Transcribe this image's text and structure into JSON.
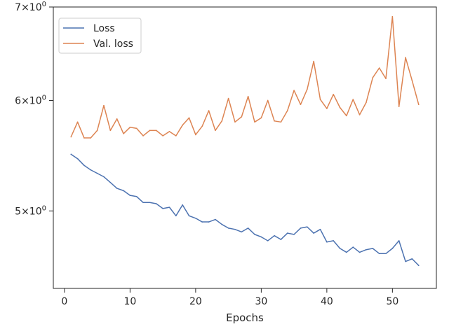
{
  "chart_data": {
    "type": "line",
    "title": "",
    "xlabel": "Epochs",
    "ylabel": "",
    "yscale": "log",
    "grid": false,
    "legend_position": "top-left",
    "xlim": [
      -1.7,
      56.7
    ],
    "ylim": [
      4.4,
      7.0
    ],
    "xticks": [
      {
        "value": 0,
        "label": "0"
      },
      {
        "value": 10,
        "label": "10"
      },
      {
        "value": 20,
        "label": "20"
      },
      {
        "value": 30,
        "label": "30"
      },
      {
        "value": 40,
        "label": "40"
      },
      {
        "value": 50,
        "label": "50"
      }
    ],
    "yticks": [
      {
        "value": 5,
        "mantissa": "5",
        "base": "10",
        "exp": "0"
      },
      {
        "value": 6,
        "mantissa": "6",
        "base": "10",
        "exp": "0"
      },
      {
        "value": 7,
        "mantissa": "7",
        "base": "10",
        "exp": "0"
      }
    ],
    "x": [
      1,
      2,
      3,
      4,
      5,
      6,
      7,
      8,
      9,
      10,
      11,
      12,
      13,
      14,
      15,
      16,
      17,
      18,
      19,
      20,
      21,
      22,
      23,
      24,
      25,
      26,
      27,
      28,
      29,
      30,
      31,
      32,
      33,
      34,
      35,
      36,
      37,
      38,
      39,
      40,
      41,
      42,
      43,
      44,
      45,
      46,
      47,
      48,
      49,
      50,
      51,
      52,
      53,
      54
    ],
    "series": [
      {
        "name": "Loss",
        "color": "#4c72b0",
        "values": [
          5.49,
          5.45,
          5.39,
          5.35,
          5.32,
          5.29,
          5.24,
          5.19,
          5.17,
          5.13,
          5.12,
          5.07,
          5.07,
          5.06,
          5.02,
          5.03,
          4.96,
          5.05,
          4.96,
          4.94,
          4.91,
          4.91,
          4.93,
          4.89,
          4.86,
          4.85,
          4.83,
          4.86,
          4.81,
          4.79,
          4.76,
          4.8,
          4.77,
          4.82,
          4.81,
          4.86,
          4.87,
          4.82,
          4.85,
          4.75,
          4.76,
          4.7,
          4.67,
          4.71,
          4.67,
          4.69,
          4.7,
          4.66,
          4.66,
          4.7,
          4.76,
          4.6,
          4.62,
          4.57
        ]
      },
      {
        "name": "Val. loss",
        "color": "#dd8452",
        "values": [
          5.65,
          5.79,
          5.64,
          5.64,
          5.71,
          5.95,
          5.71,
          5.82,
          5.68,
          5.74,
          5.73,
          5.66,
          5.71,
          5.71,
          5.66,
          5.7,
          5.66,
          5.76,
          5.83,
          5.67,
          5.75,
          5.9,
          5.71,
          5.8,
          6.02,
          5.79,
          5.84,
          6.04,
          5.79,
          5.83,
          6.0,
          5.8,
          5.79,
          5.9,
          6.1,
          5.96,
          6.11,
          6.4,
          6.01,
          5.92,
          6.06,
          5.93,
          5.85,
          6.01,
          5.86,
          5.98,
          6.23,
          6.33,
          6.22,
          6.89,
          5.94,
          6.44,
          6.2,
          5.96
        ]
      }
    ]
  }
}
